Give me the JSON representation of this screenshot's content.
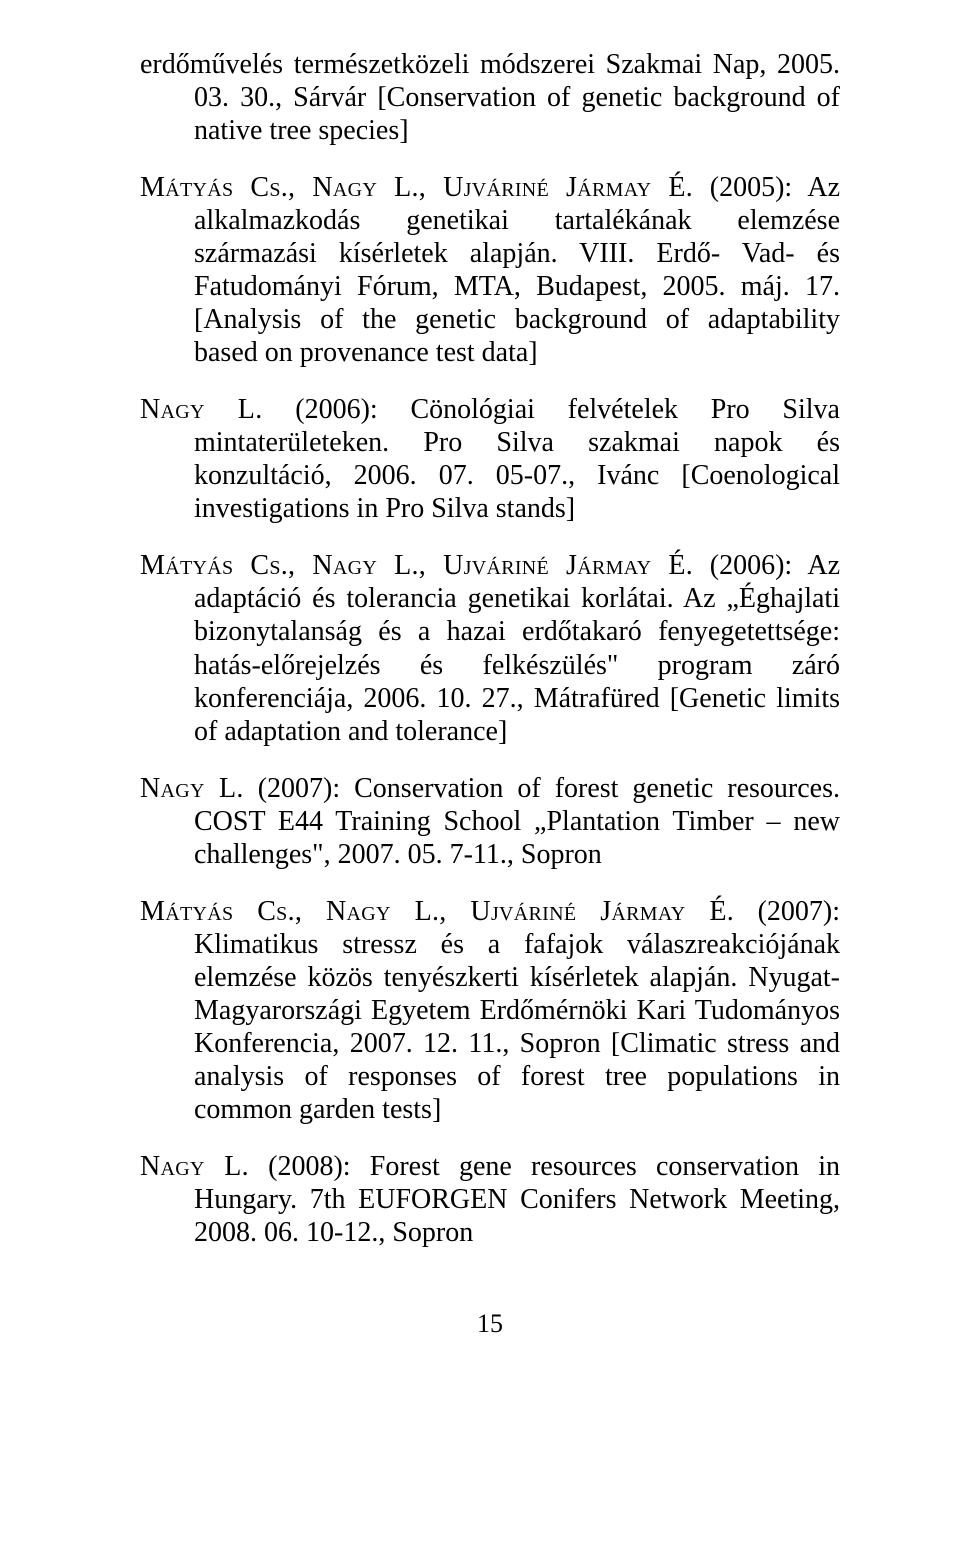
{
  "pageNumber": "15",
  "typography": {
    "font_family": "Times New Roman",
    "body_fontsize_pt": 11,
    "color": "#000000",
    "background": "#ffffff"
  },
  "references": [
    {
      "prefix_html": "erdőművelés természetközeli módszerei Szakmai Nap, 2005. 03. 30., Sárvár [Conservation of genetic background of native tree species]"
    },
    {
      "prefix_html": "<span class='sc'>Mátyás Cs., Nagy L., Ujváriné Jármay É.</span> (2005): Az alkalmazkodás genetikai tartalékának elemzése származási kísérletek alapján. VIII. Erdő- Vad- és Fatudományi Fórum, MTA, Budapest, 2005. máj. 17. [Analysis of the genetic background of adaptability based on provenance test data]"
    },
    {
      "prefix_html": "<span class='sc'>Nagy L.</span> (2006): Cönológiai felvételek Pro Silva mintaterületeken. Pro Silva szakmai napok és konzultáció, 2006. 07. 05-07., Ivánc [Coenological investigations in Pro Silva stands]"
    },
    {
      "prefix_html": "<span class='sc'>Mátyás Cs., Nagy L., Ujváriné Jármay É.</span> (2006): Az adaptáció és tolerancia genetikai korlátai. Az „Éghajlati bizonytalanság és a hazai erdőtakaró fenyegetettsége: hatás-előrejelzés és felkészülés\" program záró konferenciája, 2006. 10. 27., Mátrafüred [Genetic limits of adaptation and tolerance]"
    },
    {
      "prefix_html": "<span class='sc'>Nagy L.</span> (2007): Conservation of forest genetic resources. COST E44 Training School „Plantation Timber – new challenges\", 2007. 05. 7-11., Sopron"
    },
    {
      "prefix_html": "<span class='sc'>Mátyás Cs., Nagy L., Ujváriné Jármay É.</span> (2007): Klimatikus stressz és a fafajok válaszreakciójának elemzése közös tenyészkerti kísérletek alapján. Nyugat-Magyarországi Egyetem Erdőmérnöki Kari Tudományos Konferencia, 2007. 12. 11., Sopron [Climatic stress and analysis of responses of forest tree populations in common garden tests]"
    },
    {
      "prefix_html": "<span class='sc'>Nagy L.</span> (2008): Forest gene resources conservation in Hungary. 7th EUFORGEN Conifers Network Meeting, 2008. 06. 10-12., Sopron"
    }
  ]
}
